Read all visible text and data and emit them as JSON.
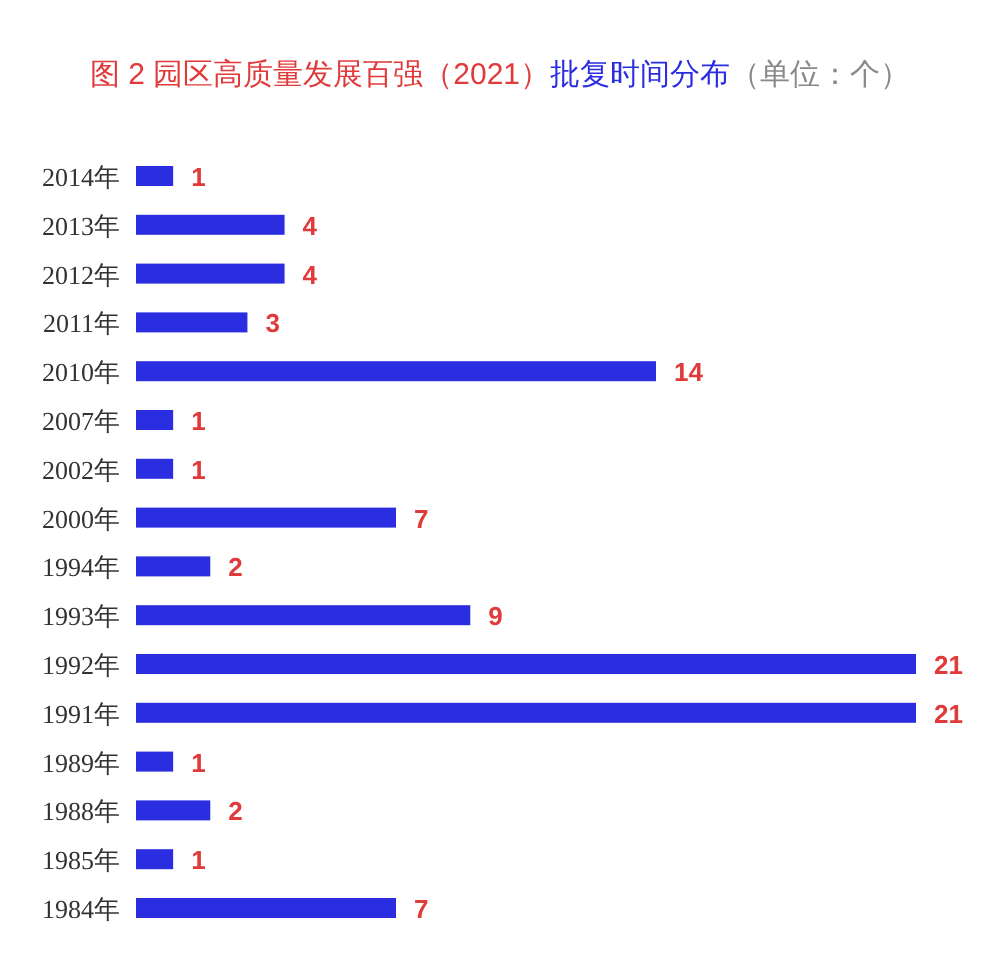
{
  "chart_data": {
    "type": "bar",
    "orientation": "horizontal",
    "title": "图 2 园区高质量发展百强（2021）",
    "subtitle": "批复时间分布",
    "annotations": [
      "（单位：个）"
    ],
    "categories": [
      "2014年",
      "2013年",
      "2012年",
      "2011年",
      "2010年",
      "2007年",
      "2002年",
      "2000年",
      "1994年",
      "1993年",
      "1992年",
      "1991年",
      "1989年",
      "1988年",
      "1985年",
      "1984年"
    ],
    "values": [
      1,
      4,
      4,
      3,
      14,
      1,
      1,
      7,
      2,
      9,
      21,
      21,
      1,
      2,
      1,
      7
    ],
    "color": "#2b2ee0",
    "data_labels": true
  }
}
